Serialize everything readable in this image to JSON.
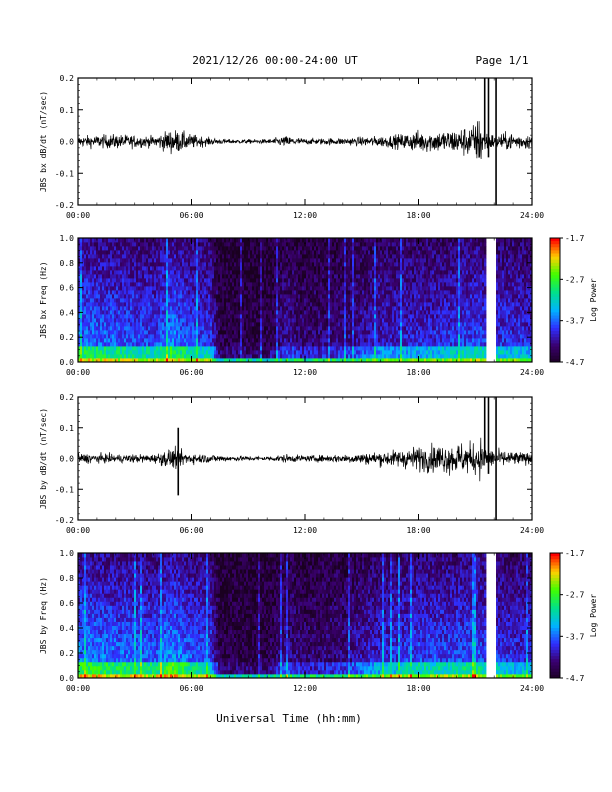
{
  "header": {
    "title": "2021/12/26  00:00-24:00 UT",
    "page": "Page 1/1"
  },
  "footer": {
    "xlabel": "Universal Time (hh:mm)"
  },
  "time_ticks": [
    "00:00",
    "06:00",
    "12:00",
    "18:00",
    "24:00"
  ],
  "colorbar": {
    "label": "Log Power",
    "ticks": [
      "-1.7",
      "-2.7",
      "-3.7",
      "-4.7"
    ],
    "colormap": [
      "#1a0020",
      "#3a006f",
      "#2f2fff",
      "#00b4ff",
      "#00e08a",
      "#40ff00",
      "#ffd000",
      "#ff0000"
    ]
  },
  "chart_data": [
    {
      "type": "line",
      "ylabel": "JBS bx dB/dt (nT/sec)",
      "xlim": [
        0,
        24
      ],
      "ylim": [
        -0.2,
        0.2
      ],
      "yticks": [
        "0.2",
        "0.1",
        "0.0",
        "-0.1",
        "-0.2"
      ],
      "envelope": {
        "x_hours": [
          0,
          2,
          4,
          5,
          6,
          7,
          8,
          10,
          11,
          12,
          14,
          16,
          17,
          18,
          19,
          20,
          21,
          21.3,
          21.5,
          22,
          23,
          24
        ],
        "amplitude": [
          0.015,
          0.02,
          0.015,
          0.035,
          0.02,
          0.01,
          0.006,
          0.006,
          0.015,
          0.008,
          0.01,
          0.015,
          0.02,
          0.03,
          0.03,
          0.035,
          0.05,
          0.08,
          0.03,
          0.02,
          0.025,
          0.02
        ]
      },
      "spikes": [
        {
          "x_hours": 21.5,
          "y_min": 0.0,
          "y_max": 0.2
        },
        {
          "x_hours": 21.7,
          "y_min": -0.05,
          "y_max": 0.2
        },
        {
          "x_hours": 22.1,
          "y_min": -0.2,
          "y_max": 0.2
        }
      ]
    },
    {
      "type": "heatmap",
      "ylabel": "JBS bx Freq (Hz)",
      "xlim": [
        0,
        24
      ],
      "ylim": [
        0.0,
        1.0
      ],
      "yticks": [
        "1.0",
        "0.8",
        "0.6",
        "0.4",
        "0.2",
        "0.0"
      ],
      "zlim": [
        -4.7,
        -1.7
      ],
      "gap_hours": [
        21.6,
        22.1
      ],
      "activity": {
        "x_hours": [
          0,
          2,
          4,
          5,
          6,
          7,
          7.5,
          10,
          11,
          12,
          14,
          16,
          18,
          20,
          21,
          22,
          24
        ],
        "level": [
          0.7,
          0.65,
          0.6,
          0.75,
          0.6,
          0.55,
          0.15,
          0.15,
          0.35,
          0.25,
          0.3,
          0.45,
          0.5,
          0.55,
          0.6,
          0.55,
          0.5
        ]
      }
    },
    {
      "type": "line",
      "ylabel": "JBS by dB/dt (nT/sec)",
      "xlim": [
        0,
        24
      ],
      "ylim": [
        -0.2,
        0.2
      ],
      "yticks": [
        "0.2",
        "0.1",
        "0.0",
        "-0.1",
        "-0.2"
      ],
      "envelope": {
        "x_hours": [
          0,
          2,
          4,
          5,
          6,
          7,
          8,
          10,
          11,
          12,
          14,
          16,
          17,
          18,
          19,
          20,
          21,
          21.3,
          21.5,
          22,
          23,
          24
        ],
        "amplitude": [
          0.015,
          0.012,
          0.012,
          0.03,
          0.015,
          0.012,
          0.008,
          0.006,
          0.012,
          0.008,
          0.012,
          0.02,
          0.025,
          0.035,
          0.04,
          0.045,
          0.045,
          0.06,
          0.03,
          0.025,
          0.02,
          0.015
        ]
      },
      "spikes": [
        {
          "x_hours": 5.3,
          "y_min": -0.12,
          "y_max": 0.1
        },
        {
          "x_hours": 21.5,
          "y_min": 0.0,
          "y_max": 0.2
        },
        {
          "x_hours": 21.7,
          "y_min": -0.05,
          "y_max": 0.2
        },
        {
          "x_hours": 22.1,
          "y_min": -0.2,
          "y_max": 0.2
        }
      ]
    },
    {
      "type": "heatmap",
      "ylabel": "JBS by Freq (Hz)",
      "xlim": [
        0,
        24
      ],
      "ylim": [
        0.0,
        1.0
      ],
      "yticks": [
        "1.0",
        "0.8",
        "0.6",
        "0.4",
        "0.2",
        "0.0"
      ],
      "zlim": [
        -4.7,
        -1.7
      ],
      "gap_hours": [
        21.6,
        22.1
      ],
      "activity": {
        "x_hours": [
          0,
          2,
          4,
          5,
          6,
          7,
          7.5,
          10,
          11,
          12,
          14,
          16,
          18,
          20,
          21,
          22,
          24
        ],
        "level": [
          0.75,
          0.7,
          0.65,
          0.8,
          0.65,
          0.6,
          0.15,
          0.15,
          0.35,
          0.25,
          0.3,
          0.5,
          0.6,
          0.6,
          0.65,
          0.55,
          0.5
        ]
      }
    }
  ]
}
